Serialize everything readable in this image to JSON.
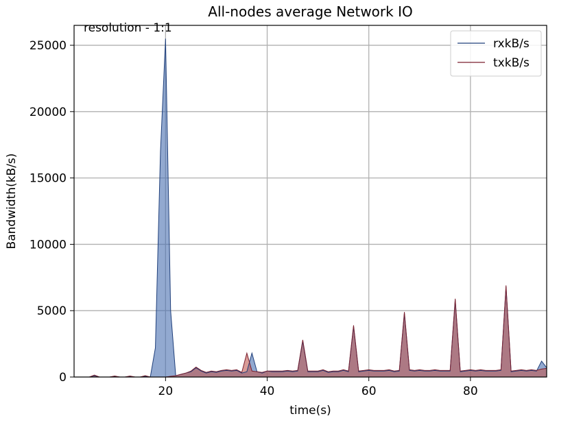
{
  "chart_data": {
    "type": "area",
    "title": "All-nodes average Network IO",
    "xlabel": "time(s)",
    "ylabel": "Bandwidth(kB/s)",
    "annotation": "resolution - 1:1",
    "xlim": [
      2,
      95
    ],
    "ylim": [
      0,
      26500
    ],
    "x_ticks": [
      20,
      40,
      60,
      80
    ],
    "y_ticks": [
      0,
      5000,
      10000,
      15000,
      20000,
      25000
    ],
    "grid": true,
    "legend_position": "top-right",
    "x": [
      2,
      3,
      4,
      5,
      6,
      7,
      8,
      9,
      10,
      11,
      12,
      13,
      14,
      15,
      16,
      17,
      18,
      19,
      20,
      21,
      22,
      23,
      24,
      25,
      26,
      27,
      28,
      29,
      30,
      31,
      32,
      33,
      34,
      35,
      36,
      37,
      38,
      39,
      40,
      41,
      42,
      43,
      44,
      45,
      46,
      47,
      48,
      49,
      50,
      51,
      52,
      53,
      54,
      55,
      56,
      57,
      58,
      59,
      60,
      61,
      62,
      63,
      64,
      65,
      66,
      67,
      68,
      69,
      70,
      71,
      72,
      73,
      74,
      75,
      76,
      77,
      78,
      79,
      80,
      81,
      82,
      83,
      84,
      85,
      86,
      87,
      88,
      89,
      90,
      91,
      92,
      93,
      94,
      95
    ],
    "series": [
      {
        "name": "rxkB/s",
        "color": "#1f3f7a",
        "fill": "#4a6fb0",
        "values": [
          0,
          0,
          0,
          0,
          100,
          0,
          0,
          0,
          50,
          0,
          0,
          50,
          0,
          0,
          50,
          0,
          2200,
          17000,
          25500,
          5000,
          100,
          200,
          300,
          400,
          700,
          450,
          300,
          400,
          350,
          450,
          500,
          450,
          500,
          300,
          400,
          1800,
          400,
          300,
          450,
          400,
          400,
          400,
          450,
          400,
          450,
          2700,
          400,
          400,
          400,
          500,
          350,
          400,
          400,
          500,
          400,
          3800,
          400,
          450,
          500,
          450,
          450,
          450,
          500,
          400,
          450,
          4800,
          500,
          450,
          500,
          450,
          450,
          500,
          450,
          450,
          450,
          5800,
          400,
          450,
          500,
          450,
          500,
          450,
          450,
          450,
          500,
          6800,
          400,
          450,
          500,
          450,
          500,
          450,
          1200,
          700
        ]
      },
      {
        "name": "txkB/s",
        "color": "#7a1f2e",
        "fill": "#c05a52",
        "values": [
          0,
          0,
          0,
          0,
          150,
          0,
          0,
          0,
          80,
          0,
          0,
          80,
          0,
          0,
          100,
          0,
          0,
          0,
          0,
          50,
          100,
          200,
          300,
          450,
          750,
          500,
          350,
          450,
          400,
          500,
          550,
          500,
          550,
          350,
          1800,
          450,
          400,
          350,
          450,
          450,
          450,
          450,
          500,
          450,
          500,
          2800,
          450,
          450,
          450,
          550,
          400,
          450,
          450,
          550,
          450,
          3900,
          450,
          500,
          550,
          500,
          500,
          500,
          550,
          450,
          500,
          4900,
          550,
          500,
          550,
          500,
          500,
          550,
          500,
          500,
          500,
          5900,
          450,
          500,
          550,
          500,
          550,
          500,
          500,
          500,
          550,
          6900,
          450,
          500,
          550,
          500,
          550,
          500,
          600,
          650
        ]
      }
    ]
  }
}
